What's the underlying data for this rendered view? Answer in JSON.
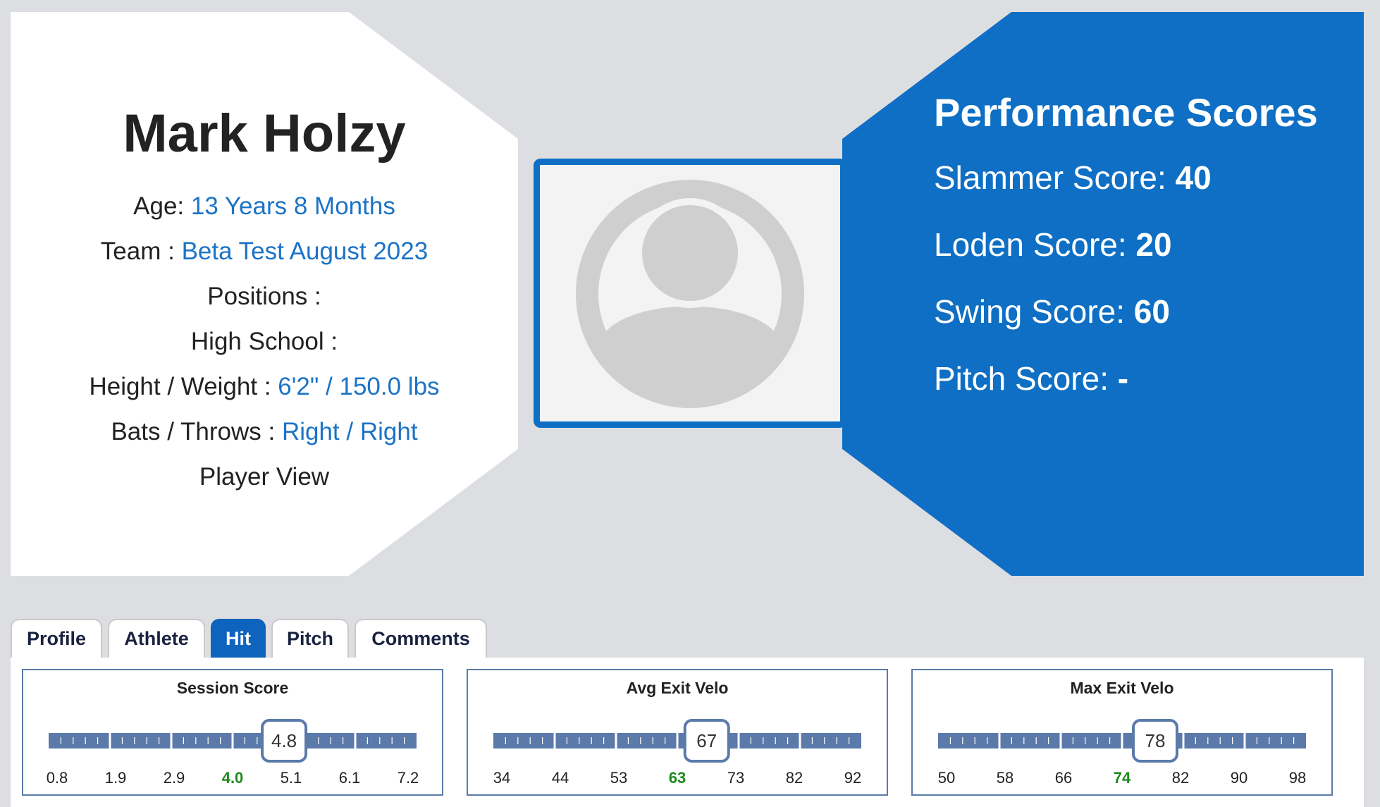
{
  "player": {
    "name": "Mark Holzy",
    "age_label": "Age: ",
    "age_value": "13 Years 8 Months",
    "team_label": "Team : ",
    "team_value": "Beta Test August 2023",
    "positions_label": "Positions :",
    "high_school_label": "High School :",
    "hw_label": "Height / Weight : ",
    "hw_value": "6'2\" / 150.0 lbs",
    "bt_label": "Bats / Throws : ",
    "bt_value": "Right / Right",
    "view_label": "Player View"
  },
  "scores": {
    "title": "Performance Scores",
    "items": [
      {
        "label": "Slammer Score: ",
        "value": "40"
      },
      {
        "label": "Loden Score: ",
        "value": "20"
      },
      {
        "label": "Swing Score: ",
        "value": "60"
      },
      {
        "label": "Pitch Score: ",
        "value": "-"
      }
    ]
  },
  "tabs": [
    {
      "label": "Profile",
      "active": false
    },
    {
      "label": "Athlete",
      "active": false
    },
    {
      "label": "Hit",
      "active": true
    },
    {
      "label": "Pitch",
      "active": false
    },
    {
      "label": "Comments",
      "active": false
    }
  ],
  "metrics": [
    {
      "title": "Session Score",
      "value": "4.8",
      "ticks": [
        "0.8",
        "1.9",
        "2.9",
        "4.0",
        "5.1",
        "6.1",
        "7.2"
      ],
      "highlight_index": 3,
      "value_fraction": 0.64
    },
    {
      "title": "Avg Exit Velo",
      "value": "67",
      "ticks": [
        "34",
        "44",
        "53",
        "63",
        "73",
        "82",
        "92"
      ],
      "highlight_index": 3,
      "value_fraction": 0.58
    },
    {
      "title": "Max Exit Velo",
      "value": "78",
      "ticks": [
        "50",
        "58",
        "66",
        "74",
        "82",
        "90",
        "98"
      ],
      "highlight_index": 3,
      "value_fraction": 0.59
    }
  ],
  "colors": {
    "brand_blue": "#0e6fc4",
    "link_blue": "#1b73c6",
    "bar_blue": "#5b7aa9",
    "highlight_green": "#1e8a1e"
  },
  "icons": {
    "avatar": "user-avatar-icon"
  }
}
